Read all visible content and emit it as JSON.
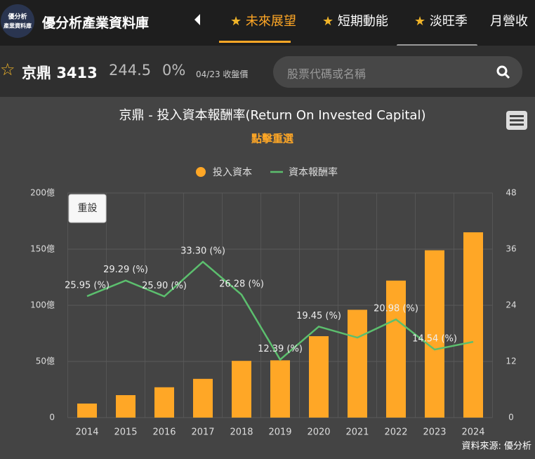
{
  "header": {
    "logo": "優分析\n產業資料庫",
    "title": "優分析產業資料庫",
    "tabs": [
      "未來展望",
      "短期動能",
      "淡旺季",
      "月營收"
    ]
  },
  "stock": {
    "name": "京鼎",
    "code": "3413",
    "price": "244.5",
    "change": "0%",
    "date": "04/23",
    "date_label": "收盤價",
    "search_placeholder": "股票代碼或名稱"
  },
  "chart_data": {
    "type": "combo",
    "title": "京鼎 - 投入資本報酬率(Return On Invested Capital)",
    "subtitle": "點擊重選",
    "reset": "重設",
    "source": "資料來源: 優分析",
    "categories": [
      "2014",
      "2015",
      "2016",
      "2017",
      "2018",
      "2019",
      "2020",
      "2021",
      "2022",
      "2023",
      "2024"
    ],
    "series": [
      {
        "name": "投入資本",
        "type": "bar",
        "axis": "y",
        "color": "#ffa726",
        "values": [
          12.5,
          20,
          27,
          34.5,
          50.5,
          51,
          72.5,
          96,
          122,
          149,
          165
        ]
      },
      {
        "name": "資本報酬率",
        "type": "line",
        "axis": "y2",
        "color": "#5cbf6e",
        "values": [
          25.95,
          29.29,
          25.9,
          33.3,
          26.28,
          12.39,
          19.45,
          17.1,
          20.98,
          14.54,
          16.2
        ],
        "value_labels": [
          "25.95 (%)",
          "29.29 (%)",
          "25.90 (%)",
          "33.30 (%)",
          "26.28 (%)",
          "12.39 (%)",
          "19.45 (%)",
          null,
          "20.98 (%)",
          "14.54 (%)",
          null
        ]
      }
    ],
    "ylim": [
      0,
      200
    ],
    "yticks": [
      0,
      {
        "value": 50,
        "label": "50億"
      },
      {
        "value": 100,
        "label": "100億"
      },
      {
        "value": 150,
        "label": "150億"
      },
      {
        "value": 200,
        "label": "200億"
      }
    ],
    "y2lim": [
      0,
      48
    ],
    "y2ticks": [
      0,
      12,
      24,
      36,
      48
    ],
    "grid": true
  }
}
